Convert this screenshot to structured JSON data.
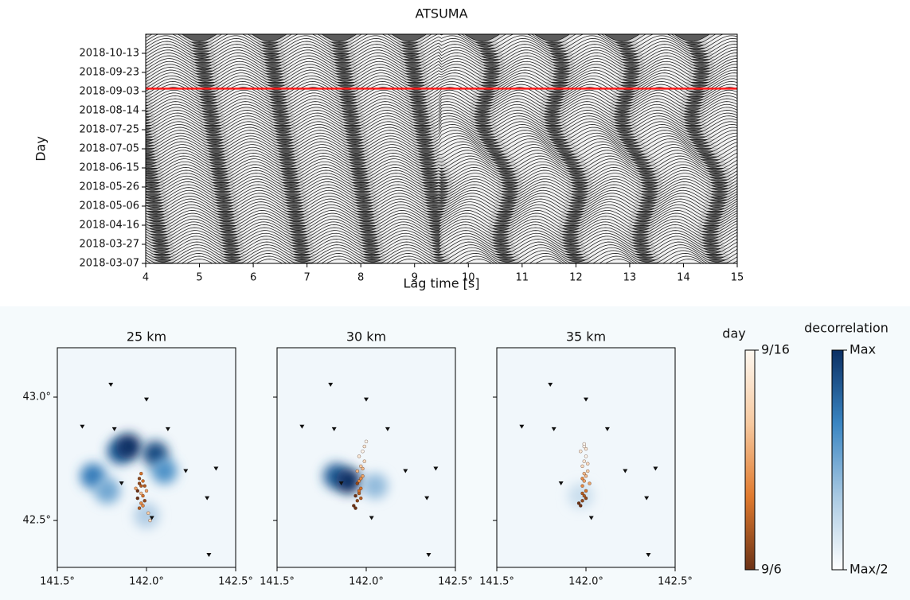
{
  "chart_data": [
    {
      "type": "wiggle",
      "title": "ATSUMA",
      "xlabel": "Lag time [s]",
      "ylabel": "Day",
      "xlim": [
        4,
        15
      ],
      "xticks": [
        4,
        5,
        6,
        7,
        8,
        9,
        10,
        11,
        12,
        13,
        14,
        15
      ],
      "ylim": [
        "2018-03-07",
        "2018-11-02"
      ],
      "yticks": [
        "2018-03-07",
        "2018-03-27",
        "2018-04-16",
        "2018-05-06",
        "2018-05-26",
        "2018-06-15",
        "2018-07-05",
        "2018-07-25",
        "2018-08-14",
        "2018-09-03",
        "2018-09-23",
        "2018-10-13"
      ],
      "event_line": "2018-09-06",
      "event_color": "#ff1a1a",
      "trace_period": 1.3,
      "trace_interval_days": 3
    },
    {
      "type": "map",
      "title": "25 km",
      "xlim": [
        141.5,
        142.5
      ],
      "ylim": [
        42.31,
        43.2
      ],
      "xticks": [
        {
          "value": 141.5,
          "label": "141.5°"
        },
        {
          "value": 142.0,
          "label": "142.0°"
        },
        {
          "value": 142.5,
          "label": "142.5°"
        }
      ],
      "yticks": [
        {
          "value": 42.5,
          "label": "42.5°"
        },
        {
          "value": 43.0,
          "label": "43.0°"
        }
      ],
      "stations": {
        "lon": [
          141.8,
          142.0,
          141.64,
          141.82,
          142.12,
          142.22,
          142.39,
          141.86,
          142.34,
          142.03,
          142.35
        ],
        "lat": [
          43.05,
          42.99,
          42.88,
          42.87,
          42.87,
          42.7,
          42.71,
          42.65,
          42.59,
          42.51,
          42.36
        ]
      },
      "events": {
        "lon": [
          141.96,
          141.97,
          141.95,
          141.98,
          141.99,
          141.97,
          141.96,
          142.0,
          141.98,
          141.95,
          141.97,
          142.01,
          141.99,
          141.96,
          141.98,
          142.02,
          141.97,
          141.94
        ],
        "lat": [
          42.67,
          42.64,
          42.62,
          42.6,
          42.58,
          42.57,
          42.55,
          42.62,
          42.66,
          42.59,
          42.61,
          42.53,
          42.64,
          42.65,
          42.56,
          42.5,
          42.69,
          42.63
        ],
        "day": [
          7,
          8,
          6,
          9,
          7,
          10,
          8,
          11,
          9,
          6,
          12,
          13,
          8,
          7,
          10,
          14,
          9,
          11
        ]
      },
      "decorrelation": {
        "lon": [
          141.85,
          141.9,
          142.05,
          141.7,
          142.1,
          141.78,
          142.0
        ],
        "lat": [
          42.78,
          42.8,
          42.77,
          42.68,
          42.7,
          42.62,
          42.52
        ],
        "value": [
          0.9,
          1,
          0.95,
          0.85,
          0.8,
          0.75,
          0.65
        ]
      }
    },
    {
      "type": "map",
      "title": "30 km",
      "xlim": [
        141.5,
        142.5
      ],
      "ylim": [
        42.31,
        43.2
      ],
      "xticks": [
        {
          "value": 141.5,
          "label": "141.5°"
        },
        {
          "value": 142.0,
          "label": "142.0°"
        },
        {
          "value": 142.5,
          "label": "142.5°"
        }
      ],
      "yticks": [
        {
          "value": 42.5,
          "label": "42.5°"
        },
        {
          "value": 43.0,
          "label": "43.0°"
        }
      ],
      "stations": {
        "lon": [
          141.8,
          142.0,
          141.64,
          141.82,
          142.12,
          142.22,
          142.39,
          141.86,
          142.34,
          142.03,
          142.35
        ],
        "lat": [
          43.05,
          42.99,
          42.88,
          42.87,
          42.87,
          42.7,
          42.71,
          42.65,
          42.59,
          42.51,
          42.36
        ]
      },
      "events": {
        "lon": [
          141.93,
          141.95,
          141.96,
          141.97,
          141.94,
          141.96,
          141.98,
          141.95,
          141.97,
          141.99,
          141.96,
          141.98,
          141.95,
          141.97,
          141.99,
          142.0,
          141.96,
          141.94,
          141.98,
          141.97
        ],
        "lat": [
          42.56,
          42.58,
          42.61,
          42.63,
          42.6,
          42.66,
          42.68,
          42.7,
          42.72,
          42.74,
          42.76,
          42.78,
          42.65,
          42.59,
          42.8,
          42.82,
          42.62,
          42.55,
          42.71,
          42.67
        ],
        "day": [
          6,
          7,
          8,
          9,
          6,
          10,
          11,
          12,
          13,
          14,
          15,
          16,
          7,
          8,
          15,
          16,
          9,
          6,
          12,
          10
        ]
      },
      "decorrelation": {
        "lon": [
          141.83,
          141.9,
          142.05
        ],
        "lat": [
          42.68,
          42.66,
          42.64
        ],
        "value": [
          0.9,
          1,
          0.7
        ]
      }
    },
    {
      "type": "map",
      "title": "35 km",
      "xlim": [
        141.5,
        142.5
      ],
      "ylim": [
        42.31,
        43.2
      ],
      "xticks": [
        {
          "value": 141.5,
          "label": "141.5°"
        },
        {
          "value": 142.0,
          "label": "142.0°"
        },
        {
          "value": 142.5,
          "label": "142.5°"
        }
      ],
      "yticks": [
        {
          "value": 42.5,
          "label": "42.5°"
        },
        {
          "value": 43.0,
          "label": "43.0°"
        }
      ],
      "stations": {
        "lon": [
          141.8,
          142.0,
          141.64,
          141.82,
          142.12,
          142.22,
          142.39,
          141.86,
          142.34,
          142.03,
          142.35
        ],
        "lat": [
          43.05,
          42.99,
          42.88,
          42.87,
          42.87,
          42.7,
          42.71,
          42.65,
          42.59,
          42.51,
          42.36
        ]
      },
      "events": {
        "lon": [
          141.97,
          141.98,
          141.99,
          142.0,
          141.98,
          141.99,
          142.0,
          142.01,
          141.98,
          141.99,
          142.0,
          141.97,
          141.99,
          142.01,
          141.98,
          142.0,
          141.96,
          141.99,
          142.02,
          141.98,
          142.0,
          141.99
        ],
        "lat": [
          42.56,
          42.58,
          42.6,
          42.62,
          42.64,
          42.66,
          42.68,
          42.7,
          42.72,
          42.74,
          42.76,
          42.78,
          42.8,
          42.73,
          42.61,
          42.59,
          42.57,
          42.69,
          42.65,
          42.67,
          42.79,
          42.81
        ],
        "day": [
          6,
          7,
          8,
          9,
          10,
          11,
          12,
          13,
          14,
          15,
          16,
          15,
          16,
          14,
          8,
          7,
          6,
          12,
          11,
          10,
          15,
          16
        ]
      },
      "decorrelation": {
        "lon": [
          141.97
        ],
        "lat": [
          42.6
        ],
        "value": [
          0.6
        ]
      }
    },
    {
      "type": "colorbar",
      "title": "day",
      "lim": [
        6,
        16
      ],
      "ticks": [
        {
          "value": 16,
          "label": "9/16"
        },
        {
          "value": 6,
          "label": "9/6"
        }
      ],
      "colors": [
        "#6b3216",
        "#e07a2e",
        "#f6c9a0",
        "#fdf7ef"
      ]
    },
    {
      "type": "colorbar",
      "title": "decorrelation",
      "lim": [
        0.5,
        1
      ],
      "ticks": [
        {
          "value": 1,
          "label": "Max"
        },
        {
          "value": 0.5,
          "label": "Max/2"
        }
      ],
      "colors": [
        "#ffffff",
        "#a9c9e2",
        "#3a85c2",
        "#0b2f63"
      ]
    }
  ]
}
